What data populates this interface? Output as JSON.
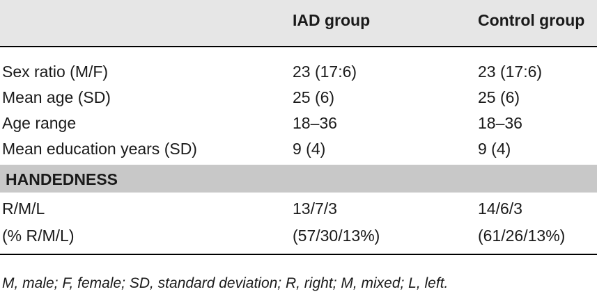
{
  "table": {
    "columns": [
      "",
      "IAD group",
      "Control group"
    ],
    "rows": [
      {
        "label": "Sex ratio (M/F)",
        "iad": "23 (17:6)",
        "control": "23 (17:6)"
      },
      {
        "label": "Mean age (SD)",
        "iad": "25 (6)",
        "control": "25 (6)"
      },
      {
        "label": "Age range",
        "iad": "18–36",
        "control": "18–36"
      },
      {
        "label": "Mean education years (SD)",
        "iad": "9 (4)",
        "control": "9 (4)"
      }
    ],
    "section": "HANDEDNESS",
    "section_rows": [
      {
        "label": "R/M/L",
        "iad": "13/7/3",
        "control": "14/6/3"
      },
      {
        "label": "(% R/M/L)",
        "iad": "(57/30/13%)",
        "control": "(61/26/13%)"
      }
    ]
  },
  "footnote": "M, male; F, female; SD, standard deviation; R, right; M, mixed; L, left.",
  "colors": {
    "header_bg": "#e6e6e6",
    "section_bg": "#c8c8c8",
    "rule": "#000000",
    "text": "#1a1a1a"
  }
}
